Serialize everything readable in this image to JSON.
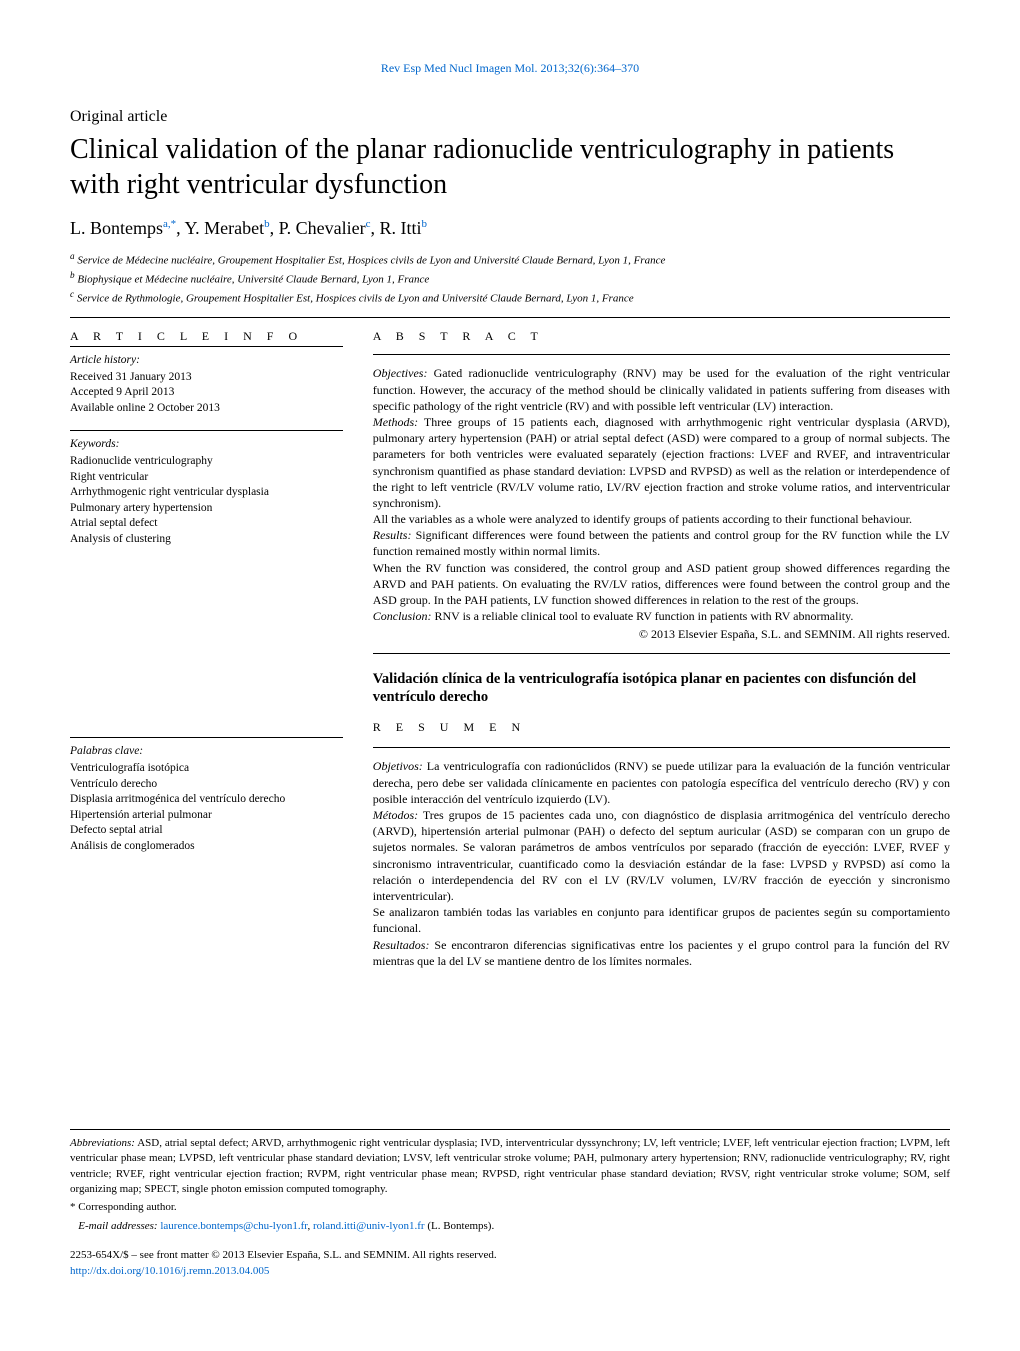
{
  "journal_ref": "Rev Esp Med Nucl Imagen Mol. 2013;32(6):364–370",
  "article_type": "Original article",
  "title": "Clinical validation of the planar radionuclide ventriculography in patients with right ventricular dysfunction",
  "authors_html": "L. Bontemps<sup>a,*</sup>,  Y. Merabet<sup>b</sup>,  P. Chevalier<sup>c</sup>,  R. Itti<sup>b</sup>",
  "affiliations": [
    "a Service de Médecine nucléaire, Groupement Hospitalier Est, Hospices civils de Lyon and Université Claude Bernard, Lyon 1, France",
    "b Biophysique et Médecine nucléaire, Université Claude Bernard, Lyon 1, France",
    "c Service de Rythmologie, Groupement Hospitalier Est, Hospices civils de Lyon and Université Claude Bernard, Lyon 1, France"
  ],
  "section_heads": {
    "article_info": "A R T I C L E   I N F O",
    "abstract": "A B S T R A C T",
    "resumen": "R E S U M E N"
  },
  "article_history": {
    "head": "Article history:",
    "items": [
      "Received 31 January 2013",
      "Accepted 9 April 2013",
      "Available online 2 October 2013"
    ]
  },
  "keywords": {
    "head": "Keywords:",
    "items": [
      "Radionuclide ventriculography",
      "Right ventricular",
      "Arrhythmogenic right ventricular dysplasia",
      "Pulmonary artery hypertension",
      "Atrial septal defect",
      "Analysis of clustering"
    ]
  },
  "palabras": {
    "head": "Palabras clave:",
    "items": [
      "Ventriculografía isotópica",
      "Ventrículo derecho",
      "Displasia arritmogénica del ventrículo derecho",
      "Hipertensión arterial pulmonar",
      "Defecto septal atrial",
      "Análisis de conglomerados"
    ]
  },
  "abstract": {
    "paragraphs": [
      {
        "runin": "Objectives:",
        "text": " Gated radionuclide ventriculography (RNV) may be used for the evaluation of the right ventricular function. However, the accuracy of the method should be clinically validated in patients suffering from diseases with specific pathology of the right ventricle (RV) and with possible left ventricular (LV) interaction."
      },
      {
        "runin": "Methods:",
        "text": " Three groups of 15 patients each, diagnosed with arrhythmogenic right ventricular dysplasia (ARVD), pulmonary artery hypertension (PAH) or atrial septal defect (ASD) were compared to a group of normal subjects. The parameters for both ventricles were evaluated separately (ejection fractions: LVEF and RVEF, and intraventricular synchronism quantified as phase standard deviation: LVPSD and RVPSD) as well as the relation or interdependence of the right to left ventricle (RV/LV volume ratio, LV/RV ejection fraction and stroke volume ratios, and interventricular synchronism)."
      },
      {
        "runin": "",
        "text": "All the variables as a whole were analyzed to identify groups of patients according to their functional behaviour."
      },
      {
        "runin": "Results:",
        "text": " Significant differences were found between the patients and control group for the RV function while the LV function remained mostly within normal limits."
      },
      {
        "runin": "",
        "text": "When the RV function was considered, the control group and ASD patient group showed differences regarding the ARVD and PAH patients. On evaluating the RV/LV ratios, differences were found between the control group and the ASD group. In the PAH patients, LV function showed differences in relation to the rest of the groups."
      },
      {
        "runin": "Conclusion:",
        "text": " RNV is a reliable clinical tool to evaluate RV function in patients with RV abnormality."
      }
    ],
    "copyright": "© 2013 Elsevier España, S.L. and SEMNIM. All rights reserved."
  },
  "es_title": "Validación clínica de la ventriculografía isotópica planar en pacientes con disfunción del ventrículo derecho",
  "resumen": {
    "paragraphs": [
      {
        "runin": "Objetivos:",
        "text": " La ventriculografía con radionúclidos (RNV) se puede utilizar para la evaluación de la función ventricular derecha, pero debe ser validada clínicamente en pacientes con patología específica del ventrículo derecho (RV) y con posible interacción del ventrículo izquierdo (LV)."
      },
      {
        "runin": "Métodos:",
        "text": " Tres grupos de 15 pacientes cada uno, con diagnóstico de displasia arritmogénica del ventrículo derecho (ARVD), hipertensión arterial pulmonar (PAH) o defecto del septum auricular (ASD) se comparan con un grupo de sujetos normales. Se valoran parámetros de ambos ventrículos por separado (fracción de eyección: LVEF, RVEF y sincronismo intraventricular, cuantificado como la desviación estándar de la fase: LVPSD y RVPSD) así como la relación o interdependencia del RV con el LV (RV/LV volumen, LV/RV fracción de eyección y sincronismo interventricular)."
      },
      {
        "runin": "",
        "text": "Se analizaron también todas las variables en conjunto para identificar grupos de pacientes según su comportamiento funcional."
      },
      {
        "runin": "Resultados:",
        "text": " Se encontraron diferencias significativas entre los pacientes y el grupo control para la función del RV mientras que la del LV se mantiene dentro de los límites normales."
      }
    ]
  },
  "footer": {
    "abbr_label": "Abbreviations:",
    "abbr_text": " ASD, atrial septal defect; ARVD, arrhythmogenic right ventricular dysplasia; IVD, interventricular dyssynchrony; LV, left ventricle; LVEF, left ventricular ejection fraction; LVPM, left ventricular phase mean; LVPSD, left ventricular phase standard deviation; LVSV, left ventricular stroke volume; PAH, pulmonary artery hypertension; RNV, radionuclide ventriculography; RV, right ventricle; RVEF, right ventricular ejection fraction; RVPM, right ventricular phase mean; RVPSD, right ventricular phase standard deviation; RVSV, right ventricular stroke volume; SOM, self organizing map; SPECT, single photon emission computed tomography.",
    "corr": "* Corresponding author.",
    "email_label": "E-mail addresses:",
    "email1": "laurence.bontemps@chu-lyon1.fr",
    "email2": "roland.itti@univ-lyon1.fr",
    "email_tail": " (L. Bontemps).",
    "copyright_line": "2253-654X/$ – see front matter © 2013 Elsevier España, S.L. and SEMNIM. All rights reserved.",
    "doi": "http://dx.doi.org/10.1016/j.remn.2013.04.005"
  }
}
